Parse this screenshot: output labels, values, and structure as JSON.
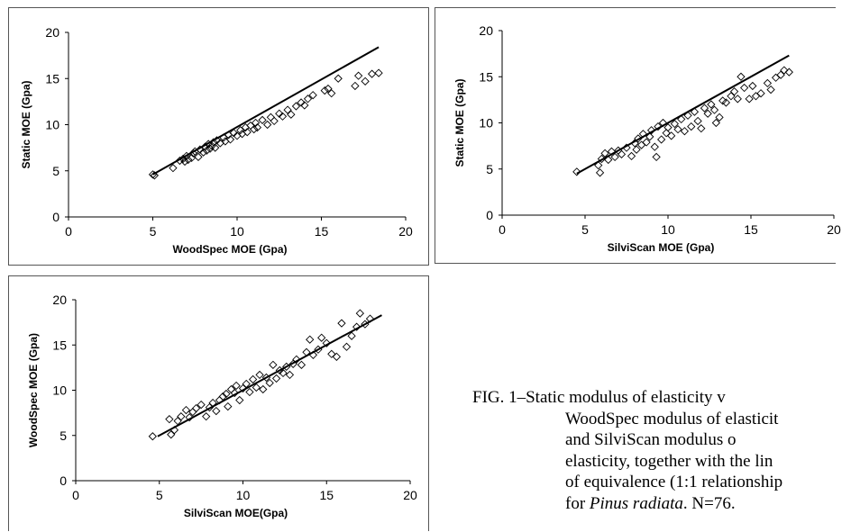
{
  "chart_data": [
    {
      "type": "scatter",
      "xlabel": "WoodSpec MOE (Gpa)",
      "ylabel": "Static MOE (Gpa)",
      "xlim": [
        0,
        20
      ],
      "ylim": [
        0,
        20
      ],
      "xticks": [
        "0",
        "5",
        "10",
        "15",
        "20"
      ],
      "yticks": [
        "0",
        "5",
        "10",
        "15",
        "20"
      ],
      "line": [
        [
          5.0,
          4.6
        ],
        [
          18.4,
          18.4
        ]
      ],
      "points": [
        [
          5.0,
          4.6
        ],
        [
          5.1,
          4.5
        ],
        [
          6.2,
          5.3
        ],
        [
          6.6,
          6.1
        ],
        [
          6.8,
          6.3
        ],
        [
          6.9,
          6.0
        ],
        [
          7.0,
          6.6
        ],
        [
          7.1,
          6.2
        ],
        [
          7.3,
          6.4
        ],
        [
          7.4,
          6.9
        ],
        [
          7.5,
          7.1
        ],
        [
          7.7,
          6.5
        ],
        [
          7.8,
          7.3
        ],
        [
          8.0,
          7.0
        ],
        [
          8.1,
          7.6
        ],
        [
          8.2,
          7.2
        ],
        [
          8.3,
          7.9
        ],
        [
          8.4,
          7.4
        ],
        [
          8.5,
          7.7
        ],
        [
          8.6,
          8.1
        ],
        [
          8.7,
          7.5
        ],
        [
          8.8,
          8.3
        ],
        [
          9.0,
          8.0
        ],
        [
          9.2,
          8.6
        ],
        [
          9.3,
          8.2
        ],
        [
          9.5,
          8.9
        ],
        [
          9.6,
          8.4
        ],
        [
          9.8,
          9.1
        ],
        [
          10.0,
          8.8
        ],
        [
          10.2,
          9.4
        ],
        [
          10.3,
          9.0
        ],
        [
          10.5,
          9.7
        ],
        [
          10.6,
          9.2
        ],
        [
          10.8,
          9.9
        ],
        [
          11.0,
          9.5
        ],
        [
          11.1,
          10.2
        ],
        [
          11.2,
          9.7
        ],
        [
          11.5,
          10.5
        ],
        [
          11.8,
          10.0
        ],
        [
          12.0,
          10.8
        ],
        [
          12.2,
          10.4
        ],
        [
          12.5,
          11.2
        ],
        [
          12.7,
          10.9
        ],
        [
          13.0,
          11.6
        ],
        [
          13.2,
          11.1
        ],
        [
          13.5,
          12.0
        ],
        [
          13.8,
          12.4
        ],
        [
          14.0,
          12.1
        ],
        [
          14.2,
          12.8
        ],
        [
          14.5,
          13.2
        ],
        [
          15.2,
          13.7
        ],
        [
          15.4,
          13.9
        ],
        [
          15.6,
          13.4
        ],
        [
          16.0,
          15.0
        ],
        [
          17.0,
          14.2
        ],
        [
          17.2,
          15.3
        ],
        [
          17.6,
          14.7
        ],
        [
          18.0,
          15.5
        ],
        [
          18.4,
          15.6
        ]
      ]
    },
    {
      "type": "scatter",
      "xlabel": "SilviScan MOE (Gpa)",
      "ylabel": "Static MOE (Gpa)",
      "xlim": [
        0,
        20
      ],
      "ylim": [
        0,
        20
      ],
      "xticks": [
        "0",
        "5",
        "10",
        "15",
        "20"
      ],
      "yticks": [
        "0",
        "5",
        "10",
        "15",
        "20"
      ],
      "line": [
        [
          4.5,
          4.5
        ],
        [
          17.3,
          17.3
        ]
      ],
      "points": [
        [
          4.5,
          4.7
        ],
        [
          5.8,
          5.4
        ],
        [
          5.9,
          4.6
        ],
        [
          6.0,
          6.1
        ],
        [
          6.2,
          6.7
        ],
        [
          6.4,
          6.0
        ],
        [
          6.6,
          6.9
        ],
        [
          6.8,
          6.3
        ],
        [
          7.0,
          7.0
        ],
        [
          7.2,
          6.6
        ],
        [
          7.5,
          7.3
        ],
        [
          7.8,
          6.4
        ],
        [
          8.0,
          7.8
        ],
        [
          8.1,
          7.1
        ],
        [
          8.2,
          8.3
        ],
        [
          8.4,
          7.6
        ],
        [
          8.5,
          8.8
        ],
        [
          8.7,
          7.9
        ],
        [
          8.9,
          8.5
        ],
        [
          9.0,
          9.2
        ],
        [
          9.2,
          7.4
        ],
        [
          9.3,
          6.3
        ],
        [
          9.4,
          9.6
        ],
        [
          9.6,
          8.2
        ],
        [
          9.7,
          10.0
        ],
        [
          9.9,
          8.9
        ],
        [
          10.0,
          9.5
        ],
        [
          10.2,
          8.6
        ],
        [
          10.4,
          9.9
        ],
        [
          10.6,
          9.3
        ],
        [
          10.8,
          10.4
        ],
        [
          11.0,
          9.1
        ],
        [
          11.2,
          10.8
        ],
        [
          11.4,
          9.6
        ],
        [
          11.6,
          11.2
        ],
        [
          11.8,
          10.2
        ],
        [
          12.0,
          9.4
        ],
        [
          12.2,
          11.6
        ],
        [
          12.4,
          11.0
        ],
        [
          12.6,
          12.0
        ],
        [
          12.8,
          11.4
        ],
        [
          12.9,
          10.0
        ],
        [
          13.1,
          10.6
        ],
        [
          13.3,
          12.4
        ],
        [
          13.5,
          12.2
        ],
        [
          13.8,
          12.9
        ],
        [
          14.0,
          13.4
        ],
        [
          14.2,
          12.6
        ],
        [
          14.4,
          15.0
        ],
        [
          14.6,
          13.8
        ],
        [
          14.9,
          12.6
        ],
        [
          15.1,
          14.0
        ],
        [
          15.3,
          12.9
        ],
        [
          15.6,
          13.2
        ],
        [
          16.0,
          14.3
        ],
        [
          16.2,
          13.6
        ],
        [
          16.5,
          14.9
        ],
        [
          16.8,
          15.2
        ],
        [
          17.0,
          15.7
        ],
        [
          17.3,
          15.5
        ]
      ]
    },
    {
      "type": "scatter",
      "xlabel": "SilviScan MOE(Gpa)",
      "ylabel": "WoodSpec MOE (Gpa)",
      "xlim": [
        0,
        20
      ],
      "ylim": [
        0,
        20
      ],
      "xticks": [
        "0",
        "5",
        "10",
        "15",
        "20"
      ],
      "yticks": [
        "0",
        "5",
        "10",
        "15",
        "20"
      ],
      "line": [
        [
          4.9,
          4.9
        ],
        [
          18.3,
          18.3
        ]
      ],
      "points": [
        [
          4.6,
          4.9
        ],
        [
          5.6,
          6.8
        ],
        [
          5.7,
          5.1
        ],
        [
          5.9,
          5.6
        ],
        [
          6.1,
          6.6
        ],
        [
          6.3,
          7.1
        ],
        [
          6.6,
          7.8
        ],
        [
          6.8,
          7.0
        ],
        [
          7.0,
          7.6
        ],
        [
          7.2,
          8.0
        ],
        [
          7.5,
          8.4
        ],
        [
          7.8,
          7.1
        ],
        [
          8.0,
          8.1
        ],
        [
          8.2,
          8.6
        ],
        [
          8.4,
          7.7
        ],
        [
          8.6,
          8.9
        ],
        [
          8.8,
          9.3
        ],
        [
          9.0,
          9.6
        ],
        [
          9.1,
          8.2
        ],
        [
          9.3,
          10.1
        ],
        [
          9.5,
          9.7
        ],
        [
          9.6,
          10.5
        ],
        [
          9.8,
          8.9
        ],
        [
          10.0,
          10.2
        ],
        [
          10.2,
          10.7
        ],
        [
          10.4,
          9.8
        ],
        [
          10.6,
          11.2
        ],
        [
          10.8,
          10.3
        ],
        [
          11.0,
          11.7
        ],
        [
          11.2,
          10.1
        ],
        [
          11.4,
          11.4
        ],
        [
          11.6,
          10.8
        ],
        [
          11.8,
          12.8
        ],
        [
          12.0,
          11.3
        ],
        [
          12.2,
          12.2
        ],
        [
          12.4,
          11.9
        ],
        [
          12.6,
          12.6
        ],
        [
          12.8,
          11.7
        ],
        [
          13.0,
          12.9
        ],
        [
          13.2,
          13.4
        ],
        [
          13.5,
          12.8
        ],
        [
          13.8,
          14.2
        ],
        [
          14.0,
          15.6
        ],
        [
          14.2,
          13.9
        ],
        [
          14.5,
          14.5
        ],
        [
          14.7,
          15.8
        ],
        [
          15.0,
          15.2
        ],
        [
          15.3,
          14.0
        ],
        [
          15.6,
          13.7
        ],
        [
          15.9,
          17.4
        ],
        [
          16.2,
          14.8
        ],
        [
          16.5,
          16.0
        ],
        [
          16.8,
          17.0
        ],
        [
          17.0,
          18.5
        ],
        [
          17.3,
          17.3
        ],
        [
          17.6,
          17.9
        ]
      ]
    }
  ],
  "caption": {
    "line1": "FIG. 1–Static modulus of elasticity v",
    "line2": "WoodSpec modulus of elasticit",
    "line3": "and SilviScan modulus o",
    "line4": "elasticity, together with the lin",
    "line5": "of equivalence (1:1 relationship",
    "line6_prefix": "for ",
    "line6_species": "Pinus radiata",
    "line6_suffix": ". N=76."
  }
}
